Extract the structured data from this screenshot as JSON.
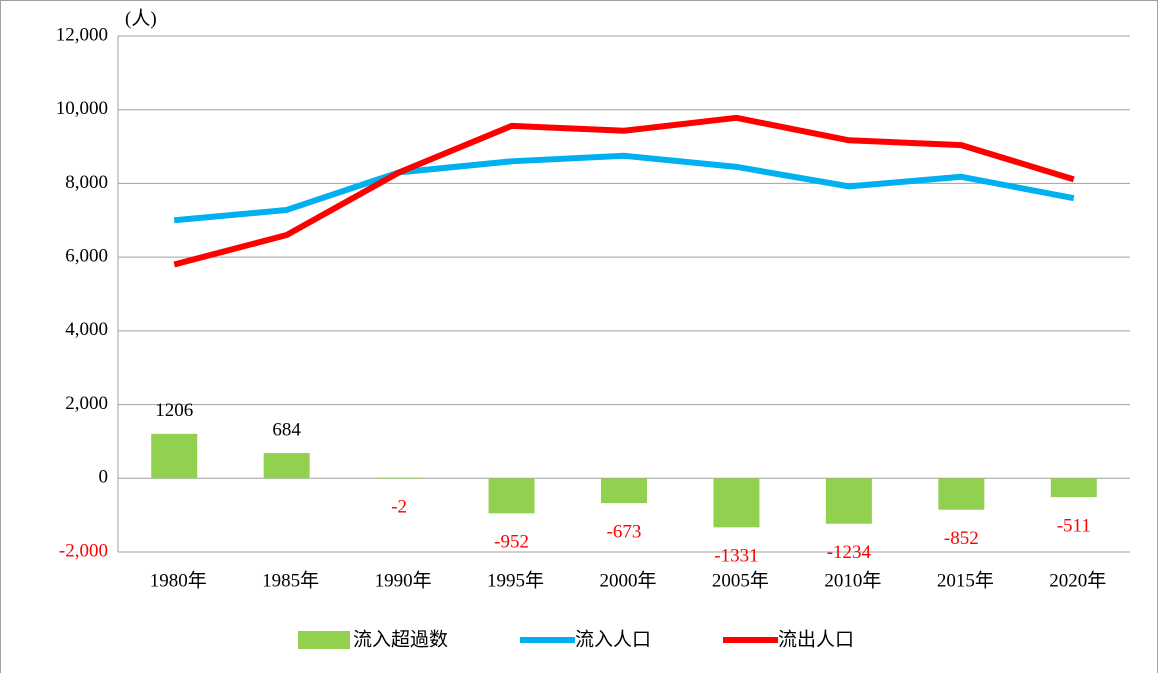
{
  "chart_data": {
    "type": "combo",
    "unit_label": "(人)",
    "categories": [
      "1980年",
      "1985年",
      "1990年",
      "1995年",
      "2000年",
      "2005年",
      "2010年",
      "2015年",
      "2020年"
    ],
    "series": [
      {
        "name": "流入超過数",
        "type": "bar",
        "color": "#92d050",
        "values": [
          1206,
          684,
          -2,
          -952,
          -673,
          -1331,
          -1234,
          -852,
          -511
        ]
      },
      {
        "name": "流入人口",
        "type": "line",
        "color": "#00b0f0",
        "values": [
          7000,
          7280,
          8300,
          8600,
          8750,
          8450,
          7920,
          8180,
          7600
        ]
      },
      {
        "name": "流出人口",
        "type": "line",
        "color": "#ff0000",
        "values": [
          5800,
          6600,
          8300,
          9560,
          9430,
          9780,
          9170,
          9040,
          8110
        ]
      }
    ],
    "ylim": [
      -2000,
      12000
    ],
    "yticks": [
      {
        "value": -2000,
        "label": "-2,000"
      },
      0,
      {
        "value": 2000,
        "label": "2,000"
      },
      {
        "value": 4000,
        "label": "4,000"
      },
      {
        "value": 6000,
        "label": "6,000"
      },
      {
        "value": 8000,
        "label": "8,000"
      },
      {
        "value": 10000,
        "label": "10,000"
      },
      {
        "value": 12000,
        "label": "12,000"
      }
    ],
    "grid": true,
    "legend": "bottom"
  }
}
